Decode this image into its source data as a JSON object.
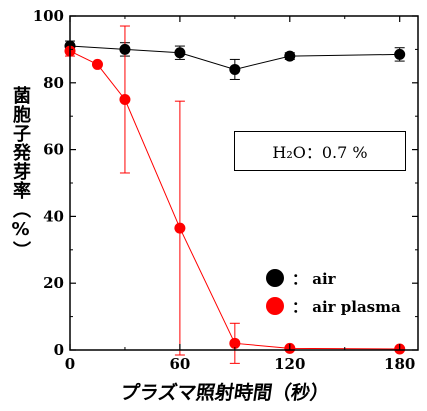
{
  "chart_data": {
    "type": "line",
    "title": "",
    "xlabel": "プラズマ照射時間（秒）",
    "ylabel": "菌胞子発芽率（%）",
    "xlim": [
      0,
      190
    ],
    "ylim": [
      0,
      100
    ],
    "x_ticks": [
      "0",
      "60",
      "120",
      "180"
    ],
    "y_ticks": [
      "0",
      "20",
      "40",
      "60",
      "80",
      "100"
    ],
    "annotation": "H₂O：0.7 %",
    "legend_position": "bottom-right",
    "series": [
      {
        "name": "： air",
        "color": "#000000",
        "points": [
          {
            "x": 0,
            "y": 91,
            "err": 1.5
          },
          {
            "x": 30,
            "y": 90,
            "err": 2
          },
          {
            "x": 60,
            "y": 89,
            "err": 2
          },
          {
            "x": 90,
            "y": 84,
            "err": 3
          },
          {
            "x": 120,
            "y": 88,
            "err": 1
          },
          {
            "x": 180,
            "y": 88.5,
            "err": 2
          }
        ]
      },
      {
        "name": "： air plasma",
        "color": "#ff0000",
        "points": [
          {
            "x": 0,
            "y": 89.5,
            "err": 1.5
          },
          {
            "x": 15,
            "y": 85.5,
            "err": 0
          },
          {
            "x": 30,
            "y": 75,
            "err": 22
          },
          {
            "x": 60,
            "y": 36.5,
            "err": 38
          },
          {
            "x": 90,
            "y": 2,
            "err": 6
          },
          {
            "x": 120,
            "y": 0.5,
            "err": 0
          },
          {
            "x": 180,
            "y": 0.3,
            "err": 0
          }
        ]
      }
    ]
  }
}
